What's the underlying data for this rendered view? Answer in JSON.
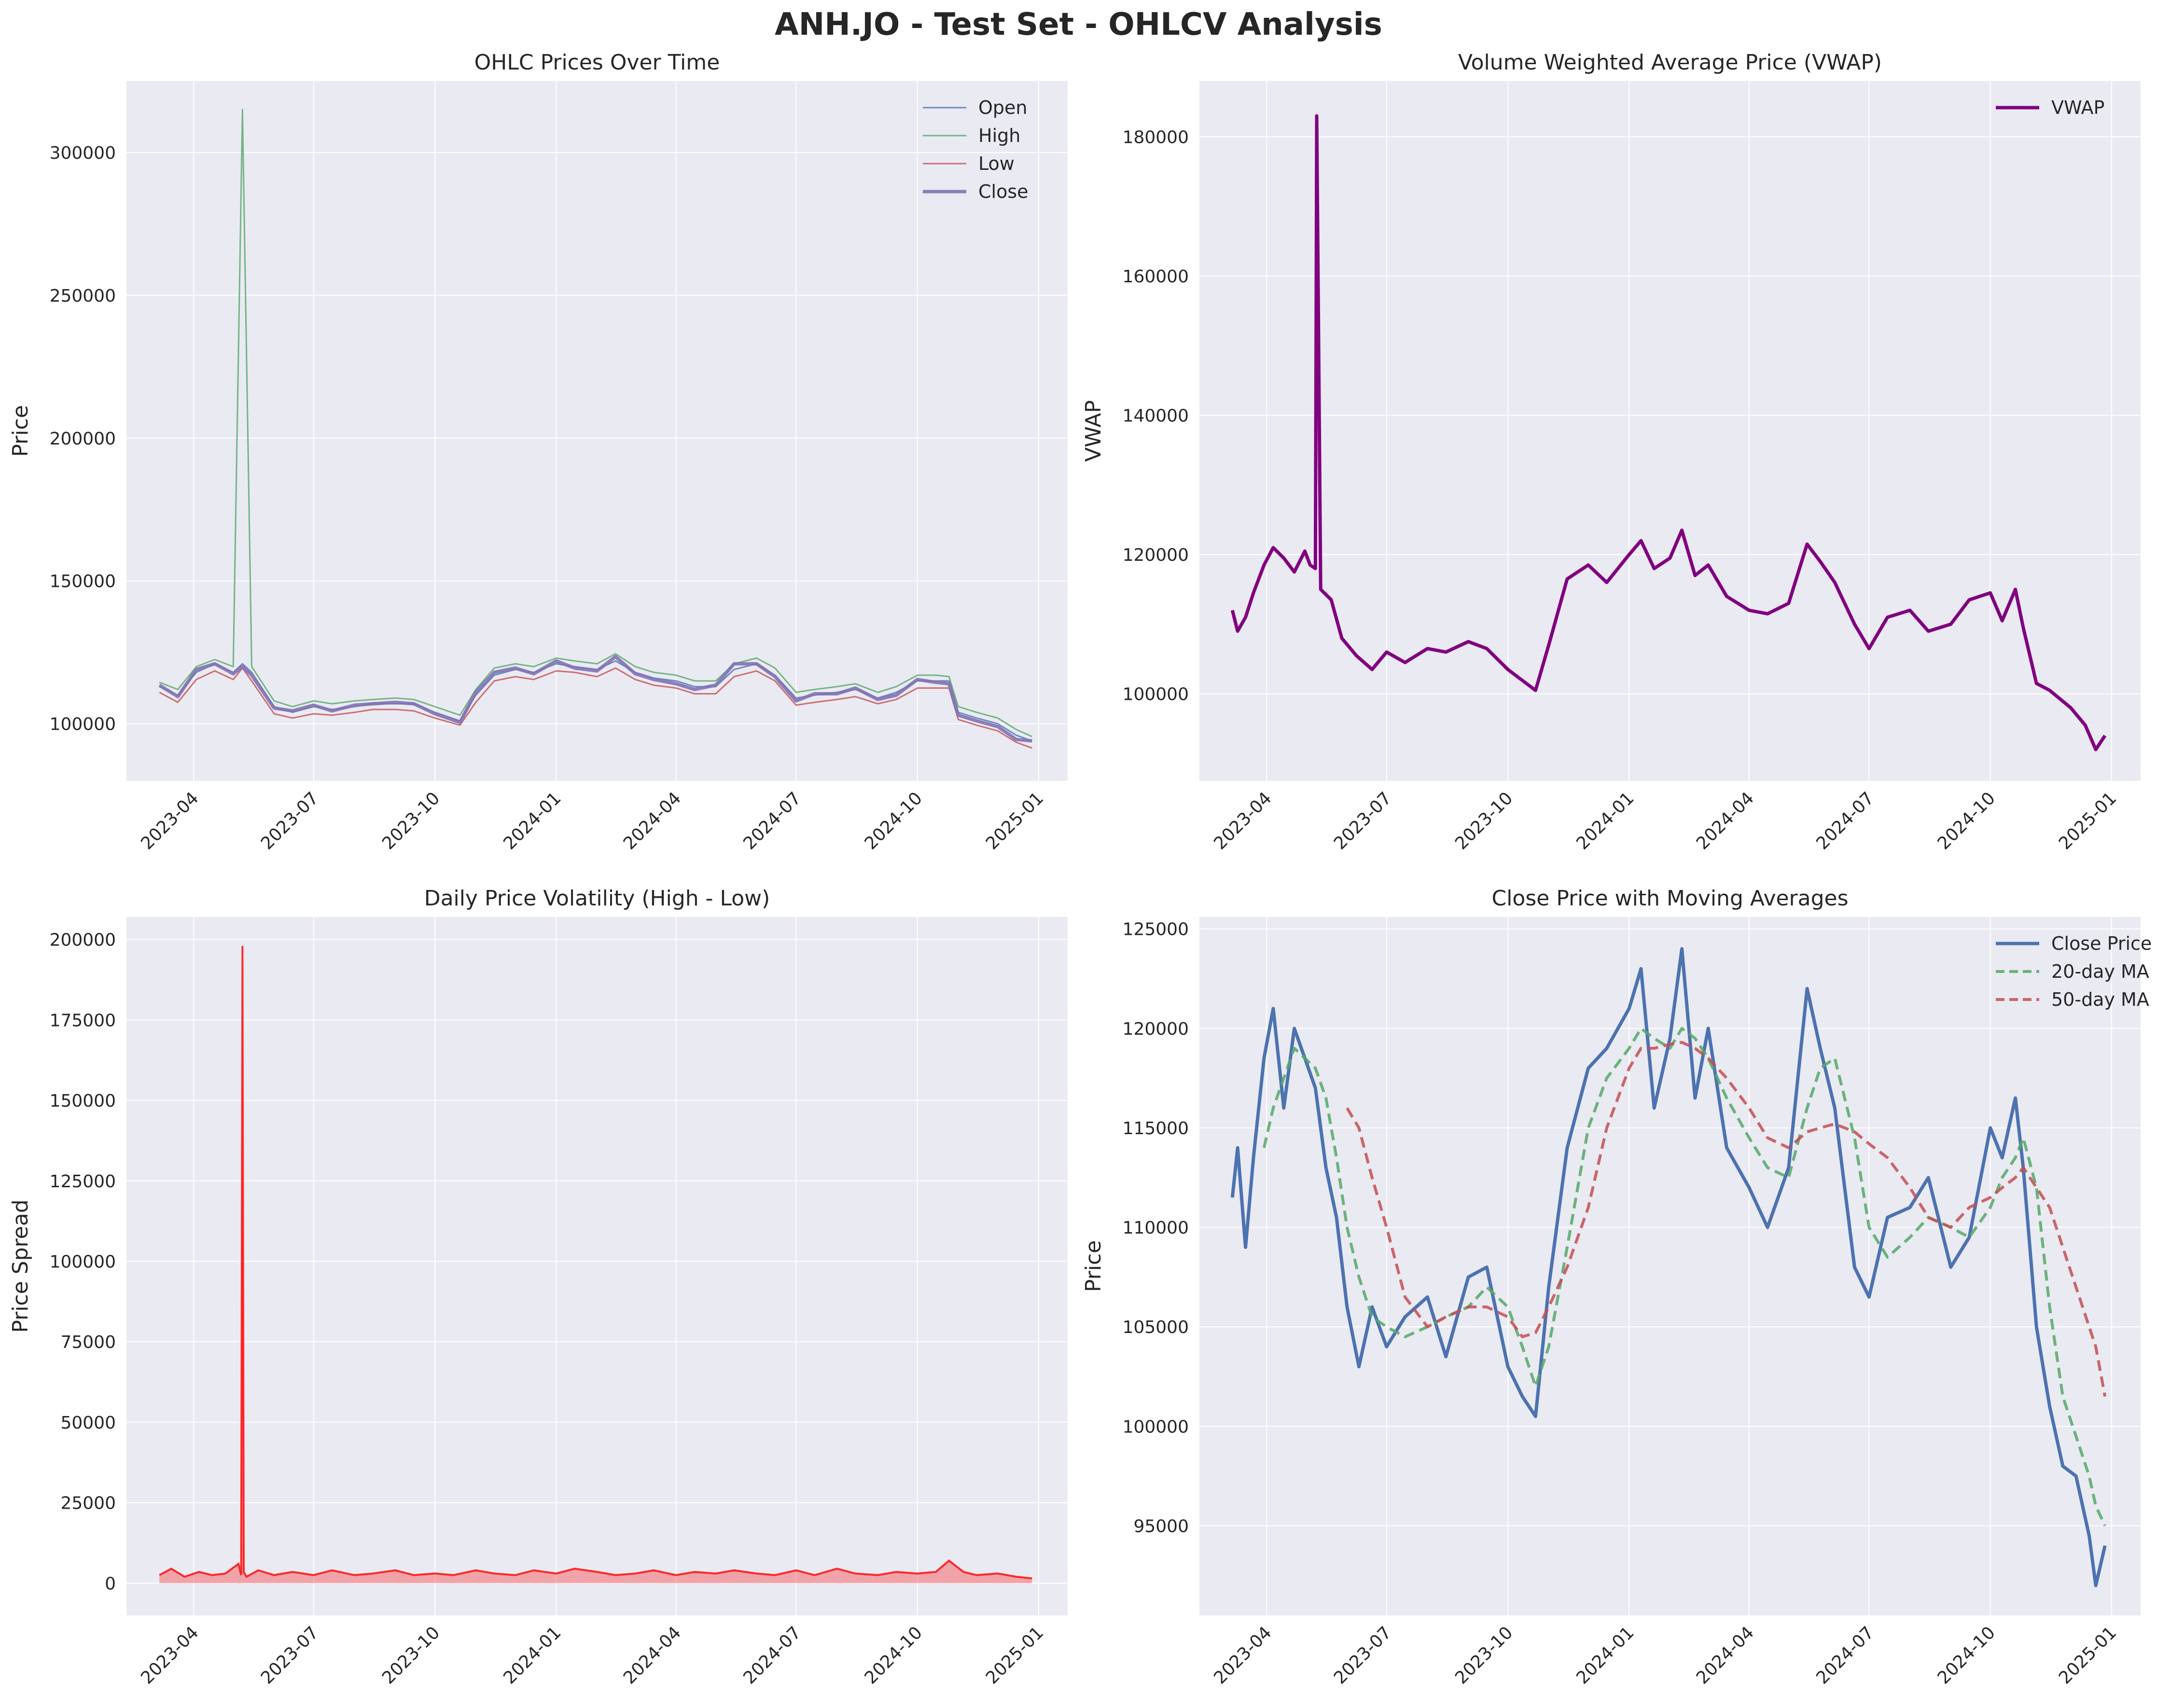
{
  "figure": {
    "title": "ANH.JO - Test Set - OHLCV Analysis"
  },
  "colors": {
    "background": "#eaeaf2",
    "grid": "#ffffff",
    "open": "#4c72b0",
    "high": "#55a868",
    "low": "#c44e52",
    "close": "#8172b2",
    "vwap": "#800080",
    "spread": "#ff0000",
    "close_price": "#4c72b0",
    "ma20": "#55a868",
    "ma50": "#c44e52"
  },
  "x_ticks": [
    "2023-04",
    "2023-07",
    "2023-10",
    "2024-01",
    "2024-04",
    "2024-07",
    "2024-10",
    "2025-01"
  ],
  "chart_data": [
    {
      "id": "ohlc",
      "type": "line",
      "title": "OHLC Prices Over Time",
      "xlabel": "",
      "ylabel": "Price",
      "ylim": [
        80000,
        325000
      ],
      "yticks": [
        100000,
        150000,
        200000,
        250000,
        300000
      ],
      "legend": "top-right",
      "grid": true,
      "x": [
        "2023-03-06",
        "2023-03-20",
        "2023-04-03",
        "2023-04-17",
        "2023-05-01",
        "2023-05-08",
        "2023-05-15",
        "2023-06-01",
        "2023-06-15",
        "2023-07-01",
        "2023-07-15",
        "2023-08-01",
        "2023-08-15",
        "2023-09-01",
        "2023-09-15",
        "2023-10-01",
        "2023-10-20",
        "2023-11-01",
        "2023-11-15",
        "2023-12-01",
        "2023-12-15",
        "2024-01-01",
        "2024-01-15",
        "2024-02-01",
        "2024-02-15",
        "2024-03-01",
        "2024-03-15",
        "2024-04-01",
        "2024-04-15",
        "2024-05-01",
        "2024-05-15",
        "2024-06-01",
        "2024-06-15",
        "2024-07-01",
        "2024-07-15",
        "2024-08-01",
        "2024-08-15",
        "2024-09-01",
        "2024-09-15",
        "2024-10-01",
        "2024-10-15",
        "2024-10-25",
        "2024-11-01",
        "2024-11-15",
        "2024-12-01",
        "2024-12-15",
        "2024-12-27"
      ],
      "series": [
        {
          "name": "Open",
          "values": [
            113000,
            110000,
            118000,
            121000,
            118000,
            121000,
            118000,
            106000,
            104000,
            106000,
            105000,
            106000,
            107000,
            107000,
            107000,
            104000,
            101000,
            110000,
            117000,
            119000,
            118000,
            121000,
            120000,
            119000,
            122000,
            118000,
            116000,
            115000,
            113000,
            113000,
            119000,
            121000,
            117000,
            109000,
            110000,
            111000,
            112000,
            109000,
            111000,
            115000,
            115000,
            115000,
            104000,
            102000,
            100000,
            96000,
            94000
          ]
        },
        {
          "name": "High",
          "values": [
            114500,
            112000,
            120000,
            122500,
            120000,
            315000,
            120000,
            108000,
            106000,
            108000,
            107000,
            108000,
            108500,
            109000,
            108500,
            106000,
            103000,
            112000,
            119500,
            121000,
            120000,
            123000,
            122000,
            121000,
            124500,
            120000,
            118000,
            117000,
            115000,
            115000,
            121000,
            123000,
            119500,
            111000,
            112000,
            113000,
            114000,
            111000,
            113000,
            117000,
            117000,
            116500,
            106000,
            104000,
            102000,
            98000,
            95500
          ]
        },
        {
          "name": "Low",
          "values": [
            111000,
            107500,
            115500,
            118500,
            115500,
            119500,
            115000,
            103500,
            102000,
            103500,
            103000,
            104000,
            105000,
            105000,
            104500,
            102000,
            99500,
            107500,
            115000,
            116500,
            115500,
            118500,
            118000,
            116500,
            119500,
            115500,
            113500,
            112500,
            110500,
            110500,
            116500,
            118500,
            115000,
            106500,
            107500,
            108500,
            109500,
            107000,
            108500,
            112500,
            112500,
            112500,
            101500,
            99500,
            97500,
            93500,
            91500
          ]
        },
        {
          "name": "Close",
          "values": [
            113500,
            109500,
            119000,
            121000,
            117500,
            120000,
            117000,
            105500,
            104500,
            106500,
            104500,
            106500,
            107000,
            107500,
            107000,
            103500,
            100500,
            111000,
            118000,
            119500,
            117500,
            122000,
            119500,
            118500,
            123500,
            117500,
            115500,
            114000,
            112000,
            113500,
            121000,
            121000,
            116500,
            108000,
            110500,
            110500,
            112500,
            108500,
            110000,
            115500,
            114500,
            114000,
            103000,
            101000,
            99000,
            94500,
            94000
          ]
        }
      ]
    },
    {
      "id": "vwap",
      "type": "line",
      "title": "Volume Weighted Average Price (VWAP)",
      "xlabel": "",
      "ylabel": "VWAP",
      "ylim": [
        87500,
        188000
      ],
      "yticks": [
        100000,
        120000,
        140000,
        160000,
        180000
      ],
      "legend": "top-right",
      "grid": true,
      "x": [
        "2023-03-06",
        "2023-03-10",
        "2023-03-16",
        "2023-03-22",
        "2023-03-30",
        "2023-04-06",
        "2023-04-14",
        "2023-04-22",
        "2023-04-30",
        "2023-05-04",
        "2023-05-08",
        "2023-05-09",
        "2023-05-12",
        "2023-05-20",
        "2023-05-28",
        "2023-06-08",
        "2023-06-20",
        "2023-07-01",
        "2023-07-15",
        "2023-08-01",
        "2023-08-15",
        "2023-09-01",
        "2023-09-15",
        "2023-10-01",
        "2023-10-15",
        "2023-10-22",
        "2023-11-01",
        "2023-11-15",
        "2023-12-01",
        "2023-12-15",
        "2024-01-01",
        "2024-01-10",
        "2024-01-20",
        "2024-02-01",
        "2024-02-10",
        "2024-02-20",
        "2024-03-01",
        "2024-03-15",
        "2024-04-01",
        "2024-04-15",
        "2024-05-01",
        "2024-05-15",
        "2024-05-25",
        "2024-06-05",
        "2024-06-20",
        "2024-07-01",
        "2024-07-15",
        "2024-08-01",
        "2024-08-15",
        "2024-09-01",
        "2024-09-15",
        "2024-10-01",
        "2024-10-10",
        "2024-10-20",
        "2024-10-26",
        "2024-11-05",
        "2024-11-15",
        "2024-12-01",
        "2024-12-12",
        "2024-12-20",
        "2024-12-27"
      ],
      "series": [
        {
          "name": "VWAP",
          "values": [
            112000,
            109000,
            111000,
            114500,
            118500,
            121000,
            119500,
            117500,
            120500,
            118500,
            118000,
            183000,
            115000,
            113500,
            108000,
            105500,
            103500,
            106000,
            104500,
            106500,
            106000,
            107500,
            106500,
            103500,
            101500,
            100500,
            107000,
            116500,
            118500,
            116000,
            120000,
            122000,
            118000,
            119500,
            123500,
            117000,
            118500,
            114000,
            112000,
            111500,
            113000,
            121500,
            119000,
            116000,
            110000,
            106500,
            111000,
            112000,
            109000,
            110000,
            113500,
            114500,
            110500,
            115000,
            109500,
            101500,
            100500,
            98000,
            95500,
            92000,
            94000
          ]
        }
      ]
    },
    {
      "id": "volatility",
      "type": "area",
      "title": "Daily Price Volatility (High - Low)",
      "xlabel": "",
      "ylabel": "Price Spread",
      "ylim": [
        -10000,
        207000
      ],
      "yticks": [
        0,
        25000,
        50000,
        75000,
        100000,
        125000,
        150000,
        175000,
        200000
      ],
      "legend": "none",
      "grid": true,
      "x": [
        "2023-03-06",
        "2023-03-15",
        "2023-03-25",
        "2023-04-05",
        "2023-04-15",
        "2023-04-25",
        "2023-05-05",
        "2023-05-07",
        "2023-05-08",
        "2023-05-09",
        "2023-05-11",
        "2023-05-20",
        "2023-06-01",
        "2023-06-15",
        "2023-07-01",
        "2023-07-15",
        "2023-08-01",
        "2023-08-15",
        "2023-09-01",
        "2023-09-15",
        "2023-10-01",
        "2023-10-15",
        "2023-11-01",
        "2023-11-15",
        "2023-12-01",
        "2023-12-15",
        "2024-01-01",
        "2024-01-15",
        "2024-02-01",
        "2024-02-15",
        "2024-03-01",
        "2024-03-15",
        "2024-04-01",
        "2024-04-15",
        "2024-05-01",
        "2024-05-15",
        "2024-06-01",
        "2024-06-15",
        "2024-07-01",
        "2024-07-15",
        "2024-08-01",
        "2024-08-15",
        "2024-09-01",
        "2024-09-15",
        "2024-10-01",
        "2024-10-15",
        "2024-10-25",
        "2024-11-05",
        "2024-11-15",
        "2024-12-01",
        "2024-12-15",
        "2024-12-27"
      ],
      "series": [
        {
          "name": "",
          "values": [
            2500,
            4500,
            2000,
            3500,
            2500,
            3000,
            6000,
            2500,
            198000,
            3500,
            2000,
            4000,
            2500,
            3500,
            2500,
            4000,
            2500,
            3000,
            4000,
            2500,
            3000,
            2500,
            4000,
            3000,
            2500,
            4000,
            3000,
            4500,
            3500,
            2500,
            3000,
            4000,
            2500,
            3500,
            3000,
            4000,
            3000,
            2500,
            4000,
            2500,
            4500,
            3000,
            2500,
            3500,
            3000,
            3500,
            7000,
            3500,
            2500,
            3000,
            2000,
            1500
          ]
        }
      ]
    },
    {
      "id": "moving-averages",
      "type": "line",
      "title": "Close Price with Moving Averages",
      "xlabel": "",
      "ylabel": "Price",
      "ylim": [
        90500,
        125600
      ],
      "yticks": [
        95000,
        100000,
        105000,
        110000,
        115000,
        120000,
        125000
      ],
      "legend": "top-right",
      "grid": true,
      "x": [
        "2023-03-06",
        "2023-03-10",
        "2023-03-16",
        "2023-03-22",
        "2023-03-30",
        "2023-04-06",
        "2023-04-14",
        "2023-04-22",
        "2023-04-30",
        "2023-05-08",
        "2023-05-16",
        "2023-05-24",
        "2023-06-01",
        "2023-06-10",
        "2023-06-20",
        "2023-07-01",
        "2023-07-15",
        "2023-08-01",
        "2023-08-15",
        "2023-09-01",
        "2023-09-15",
        "2023-10-01",
        "2023-10-12",
        "2023-10-22",
        "2023-11-01",
        "2023-11-15",
        "2023-12-01",
        "2023-12-15",
        "2024-01-01",
        "2024-01-10",
        "2024-01-20",
        "2024-02-01",
        "2024-02-10",
        "2024-02-20",
        "2024-03-01",
        "2024-03-15",
        "2024-04-01",
        "2024-04-15",
        "2024-05-01",
        "2024-05-15",
        "2024-05-25",
        "2024-06-05",
        "2024-06-20",
        "2024-07-01",
        "2024-07-15",
        "2024-08-01",
        "2024-08-15",
        "2024-09-01",
        "2024-09-15",
        "2024-10-01",
        "2024-10-10",
        "2024-10-20",
        "2024-10-26",
        "2024-11-05",
        "2024-11-15",
        "2024-11-25",
        "2024-12-05",
        "2024-12-15",
        "2024-12-20",
        "2024-12-27"
      ],
      "series": [
        {
          "name": "Close Price",
          "values": [
            111500,
            114000,
            109000,
            113500,
            118500,
            121000,
            116000,
            120000,
            118500,
            117000,
            113000,
            110500,
            106000,
            103000,
            106000,
            104000,
            105500,
            106500,
            103500,
            107500,
            108000,
            103000,
            101500,
            100500,
            107000,
            114000,
            118000,
            119000,
            121000,
            123000,
            116000,
            119500,
            124000,
            116500,
            120000,
            114000,
            112000,
            110000,
            113000,
            122000,
            119000,
            116000,
            108000,
            106500,
            110500,
            111000,
            112500,
            108000,
            109500,
            115000,
            113500,
            116500,
            113000,
            105000,
            101000,
            98000,
            97500,
            94500,
            92000,
            94000
          ]
        },
        {
          "name": "20-day MA",
          "values": [
            null,
            null,
            null,
            null,
            114000,
            116000,
            117500,
            119000,
            118500,
            118000,
            116500,
            113500,
            110000,
            107500,
            105500,
            105000,
            104500,
            105000,
            105500,
            106000,
            107000,
            106000,
            104000,
            102000,
            104000,
            109000,
            115000,
            117500,
            119000,
            120000,
            119500,
            119000,
            120000,
            119500,
            118500,
            116500,
            114500,
            113000,
            112500,
            116000,
            118000,
            118500,
            114500,
            110000,
            108500,
            109500,
            110500,
            110000,
            109500,
            111000,
            112500,
            113500,
            114500,
            112000,
            106000,
            101500,
            99500,
            97500,
            96000,
            95000
          ]
        },
        {
          "name": "50-day MA",
          "values": [
            null,
            null,
            null,
            null,
            null,
            null,
            null,
            null,
            null,
            null,
            null,
            null,
            116000,
            115000,
            112500,
            110000,
            106500,
            105000,
            105500,
            106000,
            106000,
            105500,
            104500,
            104700,
            106000,
            108000,
            111000,
            115000,
            118000,
            119000,
            119000,
            119200,
            119300,
            119000,
            118500,
            117500,
            116000,
            114500,
            114000,
            114800,
            115000,
            115200,
            114800,
            114200,
            113500,
            112000,
            110500,
            110000,
            111000,
            111500,
            112000,
            112500,
            113000,
            112000,
            111000,
            109000,
            107000,
            105000,
            104000,
            101500
          ]
        }
      ]
    }
  ]
}
